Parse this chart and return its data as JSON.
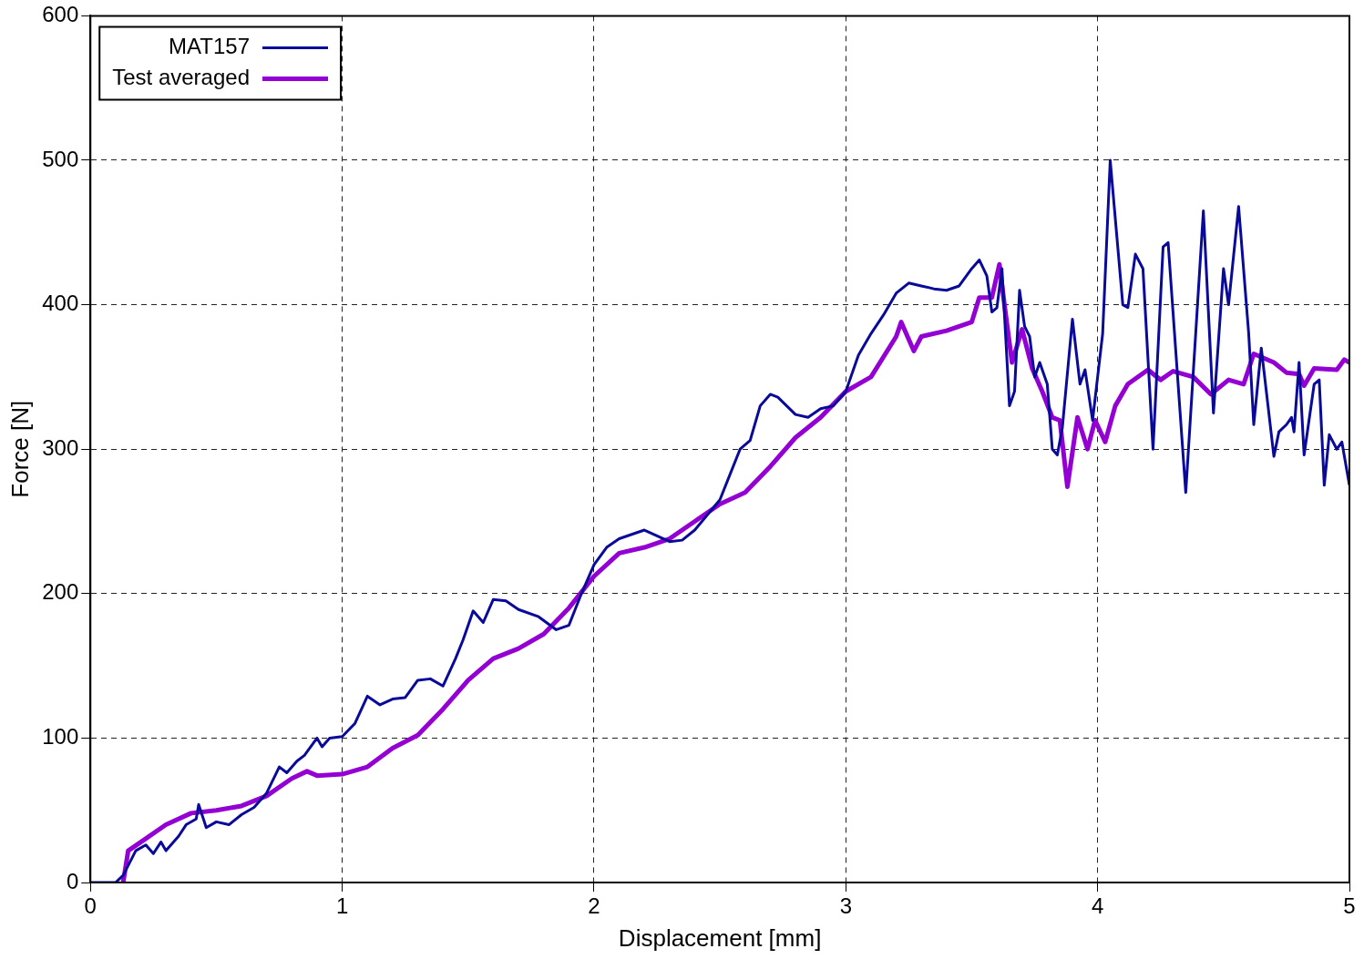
{
  "chart_data": {
    "type": "line",
    "xlabel": "Displacement [mm]",
    "ylabel": "Force [N]",
    "xlim": [
      0,
      5
    ],
    "xticks": [
      0,
      1,
      2,
      3,
      4,
      5
    ],
    "ylim": [
      0,
      600
    ],
    "yticks": [
      0,
      100,
      200,
      300,
      400,
      500,
      600
    ],
    "grid": true,
    "legend": "top left",
    "marker": "none",
    "line_style": "solid",
    "series": [
      {
        "name": "MAT157",
        "color": "#0a0a9a",
        "x": [
          0,
          0.1,
          0.13,
          0.18,
          0.22,
          0.25,
          0.28,
          0.3,
          0.35,
          0.38,
          0.42,
          0.43,
          0.46,
          0.5,
          0.55,
          0.6,
          0.65,
          0.7,
          0.75,
          0.78,
          0.82,
          0.85,
          0.9,
          0.92,
          0.95,
          1.0,
          1.05,
          1.1,
          1.15,
          1.2,
          1.25,
          1.3,
          1.35,
          1.4,
          1.45,
          1.48,
          1.52,
          1.56,
          1.6,
          1.65,
          1.7,
          1.78,
          1.85,
          1.9,
          1.95,
          2.0,
          2.05,
          2.1,
          2.2,
          2.25,
          2.3,
          2.35,
          2.4,
          2.5,
          2.58,
          2.62,
          2.66,
          2.7,
          2.73,
          2.8,
          2.85,
          2.9,
          2.95,
          3.0,
          3.05,
          3.1,
          3.15,
          3.2,
          3.25,
          3.3,
          3.35,
          3.4,
          3.45,
          3.5,
          3.53,
          3.56,
          3.58,
          3.6,
          3.62,
          3.65,
          3.67,
          3.69,
          3.71,
          3.73,
          3.75,
          3.77,
          3.8,
          3.82,
          3.84,
          3.86,
          3.9,
          3.93,
          3.95,
          3.98,
          4.0,
          4.02,
          4.05,
          4.1,
          4.12,
          4.15,
          4.18,
          4.22,
          4.26,
          4.28,
          4.35,
          4.42,
          4.46,
          4.5,
          4.52,
          4.56,
          4.6,
          4.62,
          4.65,
          4.7,
          4.72,
          4.75,
          4.77,
          4.78,
          4.8,
          4.82,
          4.86,
          4.88,
          4.9,
          4.92,
          4.95,
          4.97,
          5.0
        ],
        "values": [
          0,
          0,
          5,
          22,
          26,
          20,
          28,
          22,
          32,
          40,
          44,
          54,
          38,
          42,
          40,
          47,
          52,
          62,
          80,
          76,
          84,
          88,
          100,
          94,
          100,
          101,
          110,
          129,
          123,
          127,
          128,
          140,
          141,
          136,
          155,
          168,
          188,
          180,
          196,
          195,
          189,
          184,
          175,
          178,
          200,
          220,
          232,
          238,
          244,
          240,
          236,
          237,
          244,
          265,
          300,
          306,
          330,
          338,
          336,
          324,
          322,
          328,
          330,
          340,
          365,
          380,
          393,
          408,
          415,
          413,
          411,
          410,
          413,
          425,
          431,
          420,
          395,
          398,
          425,
          330,
          340,
          410,
          385,
          378,
          350,
          360,
          345,
          300,
          296,
          315,
          390,
          345,
          355,
          320,
          350,
          380,
          500,
          400,
          398,
          435,
          425,
          300,
          440,
          443,
          270,
          465,
          325,
          425,
          400,
          468,
          380,
          317,
          370,
          295,
          312,
          317,
          322,
          312,
          360,
          296,
          345,
          348,
          275,
          310,
          300,
          305,
          275
        ]
      },
      {
        "name": "Test averaged",
        "color": "#9400d3",
        "x": [
          0.13,
          0.15,
          0.2,
          0.3,
          0.4,
          0.5,
          0.6,
          0.7,
          0.8,
          0.86,
          0.9,
          1.0,
          1.1,
          1.2,
          1.3,
          1.4,
          1.5,
          1.6,
          1.7,
          1.8,
          1.9,
          2.0,
          2.1,
          2.2,
          2.3,
          2.4,
          2.5,
          2.6,
          2.7,
          2.8,
          2.9,
          3.0,
          3.1,
          3.2,
          3.22,
          3.27,
          3.3,
          3.4,
          3.5,
          3.53,
          3.58,
          3.61,
          3.63,
          3.66,
          3.7,
          3.74,
          3.78,
          3.82,
          3.85,
          3.88,
          3.92,
          3.96,
          3.99,
          4.03,
          4.07,
          4.12,
          4.2,
          4.25,
          4.3,
          4.38,
          4.45,
          4.52,
          4.58,
          4.62,
          4.7,
          4.75,
          4.8,
          4.82,
          4.86,
          4.95,
          4.98,
          5.0
        ],
        "values": [
          0,
          22,
          28,
          40,
          48,
          50,
          53,
          60,
          72,
          77,
          74,
          75,
          80,
          93,
          102,
          120,
          140,
          155,
          162,
          172,
          190,
          212,
          228,
          232,
          238,
          250,
          262,
          270,
          288,
          308,
          322,
          340,
          350,
          378,
          388,
          368,
          378,
          382,
          388,
          405,
          405,
          428,
          400,
          360,
          383,
          356,
          340,
          322,
          320,
          274,
          322,
          300,
          320,
          305,
          330,
          345,
          355,
          348,
          354,
          350,
          338,
          348,
          345,
          366,
          360,
          353,
          352,
          344,
          356,
          355,
          362,
          360
        ]
      }
    ]
  }
}
